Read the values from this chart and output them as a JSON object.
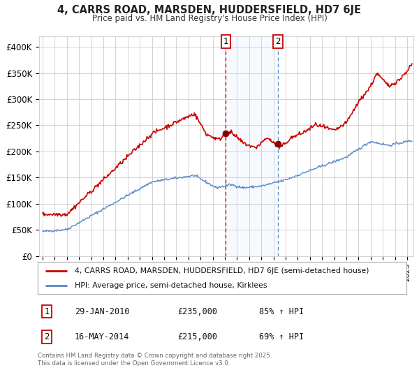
{
  "title1": "4, CARRS ROAD, MARSDEN, HUDDERSFIELD, HD7 6JE",
  "title2": "Price paid vs. HM Land Registry's House Price Index (HPI)",
  "ylabel_ticks": [
    "£0",
    "£50K",
    "£100K",
    "£150K",
    "£200K",
    "£250K",
    "£300K",
    "£350K",
    "£400K"
  ],
  "ytick_values": [
    0,
    50000,
    100000,
    150000,
    200000,
    250000,
    300000,
    350000,
    400000
  ],
  "ylim": [
    0,
    420000
  ],
  "xlim_start": 1994.7,
  "xlim_end": 2025.5,
  "marker1_date": 2010.08,
  "marker1_price": 235000,
  "marker1_label": "1",
  "marker2_date": 2014.37,
  "marker2_price": 215000,
  "marker2_label": "2",
  "hpi_color": "#5588cc",
  "property_color": "#cc0000",
  "shade_color": "#ddeeff",
  "grid_color": "#cccccc",
  "background_color": "#ffffff",
  "legend_property": "4, CARRS ROAD, MARSDEN, HUDDERSFIELD, HD7 6JE (semi-detached house)",
  "legend_hpi": "HPI: Average price, semi-detached house, Kirklees",
  "table_row1": [
    "1",
    "29-JAN-2010",
    "£235,000",
    "85% ↑ HPI"
  ],
  "table_row2": [
    "2",
    "16-MAY-2014",
    "£215,000",
    "69% ↑ HPI"
  ],
  "footer": "Contains HM Land Registry data © Crown copyright and database right 2025.\nThis data is licensed under the Open Government Licence v3.0."
}
